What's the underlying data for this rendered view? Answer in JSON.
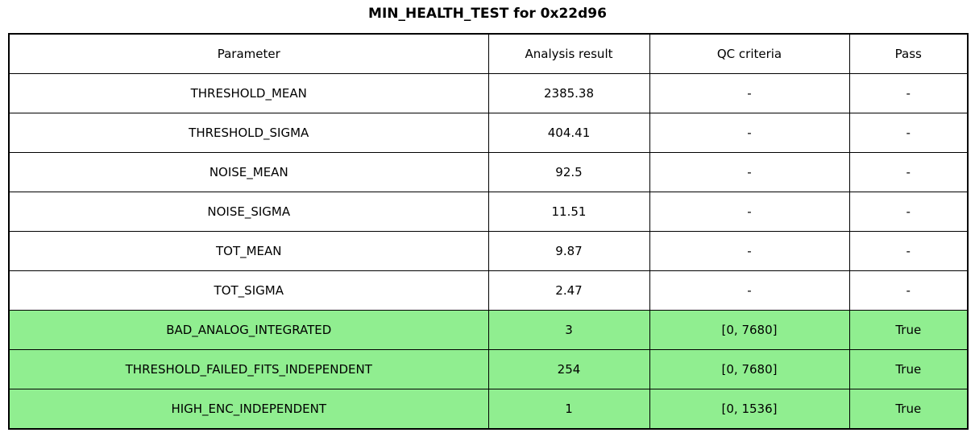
{
  "title": "MIN_HEALTH_TEST for 0x22d96",
  "chart_data": {
    "type": "table",
    "title": "MIN_HEALTH_TEST for 0x22d96",
    "columns": [
      "Parameter",
      "Analysis result",
      "QC criteria",
      "Pass"
    ],
    "rows": [
      [
        "THRESHOLD_MEAN",
        "2385.38",
        "-",
        "-"
      ],
      [
        "THRESHOLD_SIGMA",
        "404.41",
        "-",
        "-"
      ],
      [
        "NOISE_MEAN",
        "92.5",
        "-",
        "-"
      ],
      [
        "NOISE_SIGMA",
        "11.51",
        "-",
        "-"
      ],
      [
        "TOT_MEAN",
        "9.87",
        "-",
        "-"
      ],
      [
        "TOT_SIGMA",
        "2.47",
        "-",
        "-"
      ],
      [
        "BAD_ANALOG_INTEGRATED",
        "3",
        "[0, 7680]",
        "True"
      ],
      [
        "THRESHOLD_FAILED_FITS_INDEPENDENT",
        "254",
        "[0, 7680]",
        "True"
      ],
      [
        "HIGH_ENC_INDEPENDENT",
        "1",
        "[0, 1536]",
        "True"
      ]
    ],
    "highlighted_rows": [
      6,
      7,
      8
    ],
    "highlight_color": "#90EE90",
    "grid": true,
    "border_color": "#000000"
  }
}
